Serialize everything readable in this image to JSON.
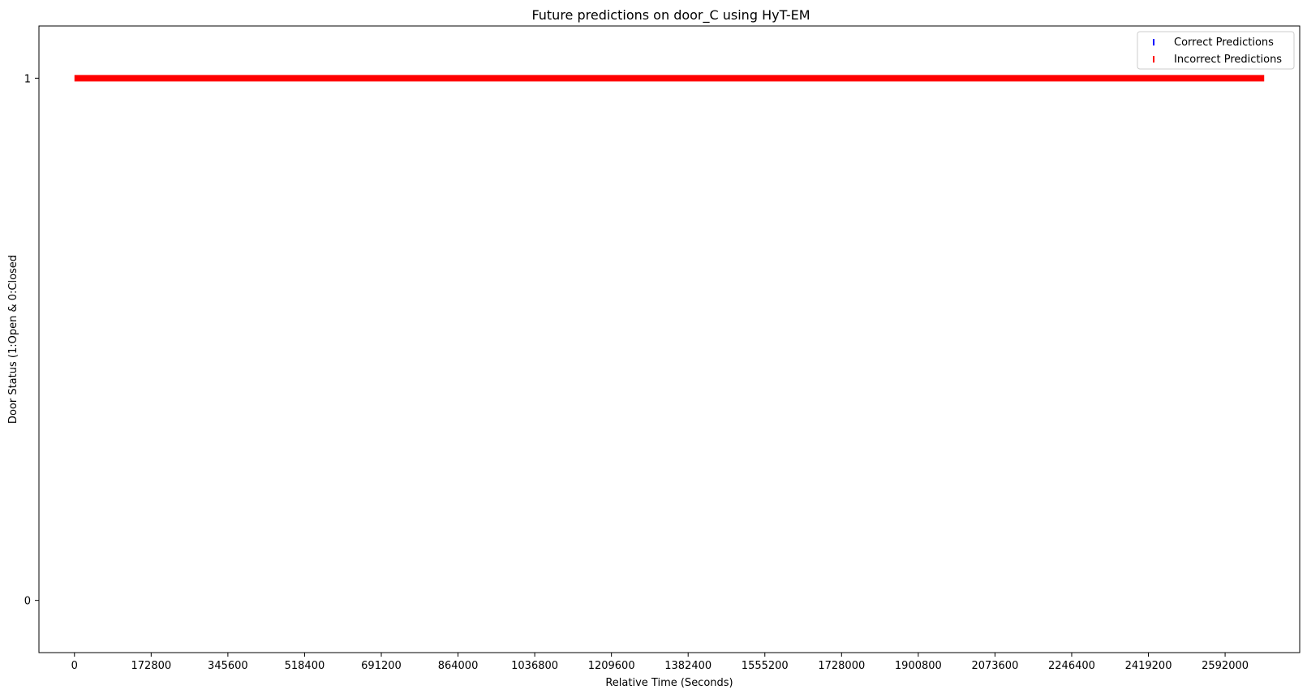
{
  "chart_data": {
    "type": "scatter",
    "title": "Future predictions on door_C using HyT-EM",
    "xlabel": "Relative Time (Seconds)",
    "ylabel": "Door Status (1:Open & 0:Closed",
    "xlim": [
      -80000,
      2760000
    ],
    "ylim": [
      -0.1,
      1.1
    ],
    "x_ticks": [
      0,
      172800,
      345600,
      518400,
      691200,
      864000,
      1036800,
      1209600,
      1382400,
      1555200,
      1728000,
      1900800,
      2073600,
      2246400,
      2419200,
      2592000
    ],
    "y_ticks": [
      0,
      1
    ],
    "grid": false,
    "legend_position": "top-right",
    "marker": "vertical-line",
    "series": [
      {
        "name": "Correct Predictions",
        "color": "#0000ff",
        "x_range": null,
        "y": null
      },
      {
        "name": "Incorrect Predictions",
        "color": "#ff0000",
        "x_range": [
          0,
          2680000
        ],
        "y": 1
      }
    ]
  }
}
